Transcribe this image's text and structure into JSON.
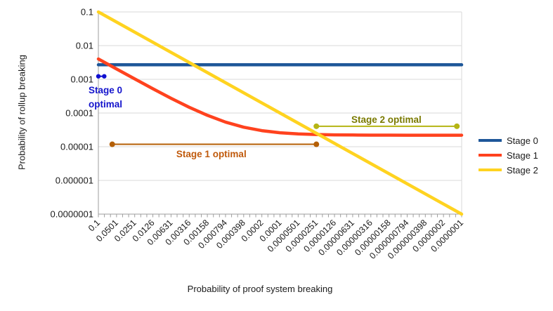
{
  "chart_data": {
    "type": "line",
    "title": "",
    "xlabel": "Probability of proof system breaking",
    "ylabel": "Probability of rollup breaking",
    "x_scale": "log",
    "y_scale": "log",
    "x_axis_reversed": true,
    "x_range": [
      0.1,
      1e-07
    ],
    "y_range": [
      0.1,
      1e-07
    ],
    "grid": "horizontal-major-only",
    "legend_position": "right",
    "x_tick_labels": [
      "0.1",
      "0.0501",
      "0.0251",
      "0.0126",
      "0.00631",
      "0.00316",
      "0.00158",
      "0.000794",
      "0.000398",
      "0.0002",
      "0.0001",
      "0.0000501",
      "0.0000251",
      "0.0000126",
      "0.00000631",
      "0.00000316",
      "0.00000158",
      "0.000000794",
      "0.000000398",
      "0.0000002",
      "0.0000001"
    ],
    "x_tick_values": [
      0.1,
      0.0501,
      0.0251,
      0.0126,
      0.00631,
      0.00316,
      0.00158,
      0.000794,
      0.000398,
      0.0002,
      0.0001,
      5.01e-05,
      2.51e-05,
      1.26e-05,
      6.31e-06,
      3.16e-06,
      1.58e-06,
      7.94e-07,
      3.98e-07,
      2e-07,
      1e-07
    ],
    "y_tick_labels": [
      "0.1",
      "0.01",
      "0.001",
      "0.0001",
      "0.00001",
      "0.000001",
      "0.0000001"
    ],
    "y_tick_values": [
      0.1,
      0.01,
      0.001,
      0.0001,
      1e-05,
      1e-06,
      1e-07
    ],
    "series": [
      {
        "name": "Stage 0",
        "color": "#1e5799",
        "model": "constant y = 0.0027",
        "x": [
          0.1,
          1e-07
        ],
        "y": [
          0.0027,
          0.0027
        ]
      },
      {
        "name": "Stage 1",
        "color": "#ff421e",
        "model": "y = 0.04*x + 0.000022",
        "x": [
          0.1,
          0.0501,
          0.0251,
          0.0126,
          0.00631,
          0.00316,
          0.00158,
          0.000794,
          0.000398,
          0.0002,
          0.0001,
          5.01e-05,
          2.51e-05,
          1.26e-05,
          6.31e-06,
          3.16e-06,
          1.58e-06,
          7.94e-07,
          3.98e-07,
          2e-07,
          1e-07
        ],
        "y": [
          0.00402,
          0.00203,
          0.00103,
          0.000526,
          0.000274,
          0.000148,
          8.54e-05,
          5.38e-05,
          3.79e-05,
          3e-05,
          2.6e-05,
          2.4e-05,
          2.3e-05,
          2.25e-05,
          2.23e-05,
          2.21e-05,
          2.21e-05,
          2.2e-05,
          2.2e-05,
          2.2e-05,
          2.2e-05
        ]
      },
      {
        "name": "Stage 2",
        "color": "#ffd320",
        "model": "y = x",
        "x": [
          0.1,
          1e-07
        ],
        "y": [
          0.1,
          1e-07
        ]
      }
    ],
    "annotations": [
      {
        "id": "stage-0-optimal",
        "label_lines": [
          "Stage 0",
          "optimal"
        ],
        "line_color": "#0f0fd0",
        "label_color": "#1414cc",
        "x1": 0.1,
        "x2": 0.08,
        "y": 0.00123,
        "dot_radius": 3.2,
        "label_pos": {
          "x": 0.0766,
          "y": 0.00048
        }
      },
      {
        "id": "stage-1-optimal",
        "label_lines": [
          "Stage 1 optimal"
        ],
        "line_color": "#b45f06",
        "label_color": "#c05a0c",
        "x1": 0.059,
        "x2": 2.51e-05,
        "y": 1.18e-05,
        "dot_radius": 4,
        "label_pos": {
          "x": 0.00136,
          "y": 6.1e-06
        }
      },
      {
        "id": "stage-2-optimal",
        "label_lines": [
          "Stage 2 optimal"
        ],
        "line_color": "#b5b514",
        "label_color": "#7a7a00",
        "x1": 2.51e-05,
        "x2": 1.2e-07,
        "y": 4.05e-05,
        "dot_radius": 4,
        "label_pos": {
          "x": 1.75e-06,
          "y": 6.4e-05
        }
      }
    ]
  },
  "legend": {
    "items": [
      {
        "label": "Stage 0",
        "color": "#1e5799"
      },
      {
        "label": "Stage 1",
        "color": "#ff421e"
      },
      {
        "label": "Stage 2",
        "color": "#ffd320"
      }
    ]
  },
  "style_colors": {
    "gridline": "#d9d9d9",
    "axis": "#9e9e9e",
    "tick_text": "#1a1a1a",
    "background": "#ffffff"
  }
}
